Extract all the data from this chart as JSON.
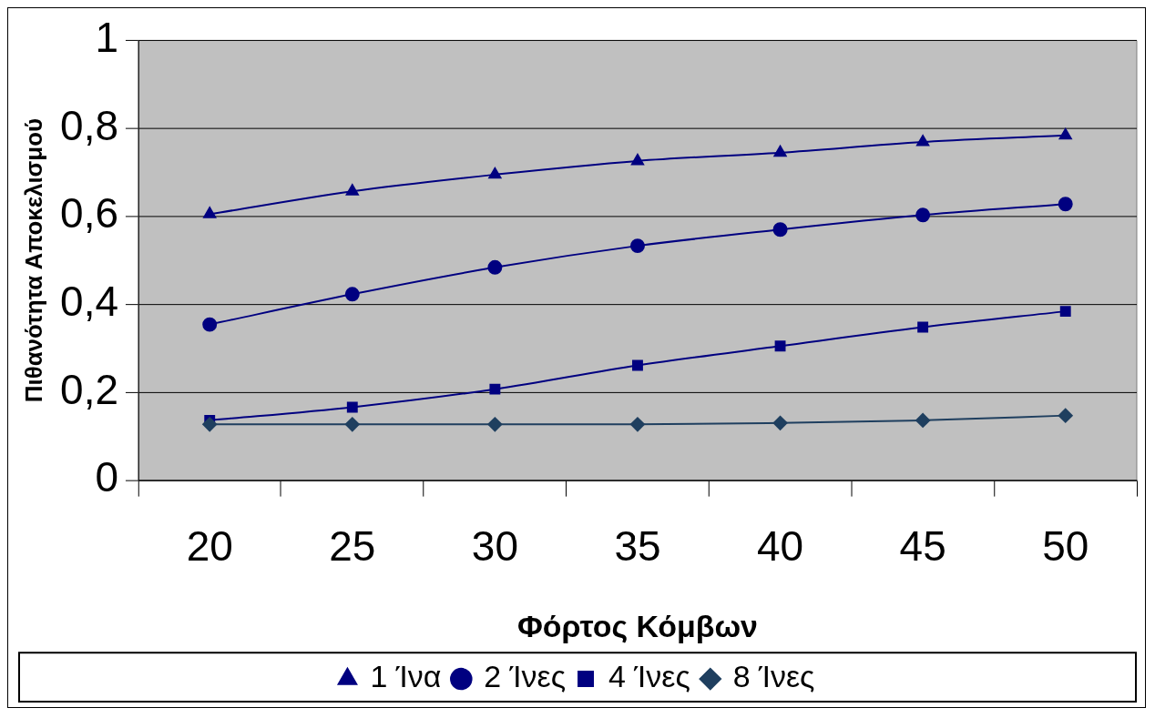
{
  "chart_data": {
    "type": "line",
    "xlabel": "Φόρτος Κόμβων",
    "ylabel": "Πιθανότητα Αποκελισμού",
    "categories": [
      "20",
      "25",
      "30",
      "35",
      "40",
      "45",
      "50"
    ],
    "series": [
      {
        "name": "1 Ίνα",
        "color": "#000080",
        "marker": "triangle",
        "values": [
          0.605,
          0.657,
          0.695,
          0.726,
          0.745,
          0.769,
          0.784
        ]
      },
      {
        "name": "2 Ίνες",
        "color": "#000080",
        "marker": "circle",
        "values": [
          0.354,
          0.423,
          0.484,
          0.533,
          0.57,
          0.603,
          0.628
        ]
      },
      {
        "name": "4 Ίνες",
        "color": "#000080",
        "marker": "square",
        "values": [
          0.136,
          0.166,
          0.207,
          0.261,
          0.305,
          0.348,
          0.384
        ]
      },
      {
        "name": "8 Ίνες",
        "color": "#1f3f5f",
        "marker": "diamond",
        "values": [
          0.127,
          0.127,
          0.127,
          0.127,
          0.13,
          0.136,
          0.147
        ]
      }
    ],
    "ylim": [
      0,
      1
    ],
    "yticks": [
      0,
      {
        "value": 0.2,
        "label": "0,2"
      },
      {
        "value": 0.4,
        "label": "0,4"
      },
      {
        "value": 0.6,
        "label": "0,6"
      },
      {
        "value": 0.8,
        "label": "0,8"
      },
      1
    ],
    "grid": "y",
    "legend": "bottom"
  }
}
